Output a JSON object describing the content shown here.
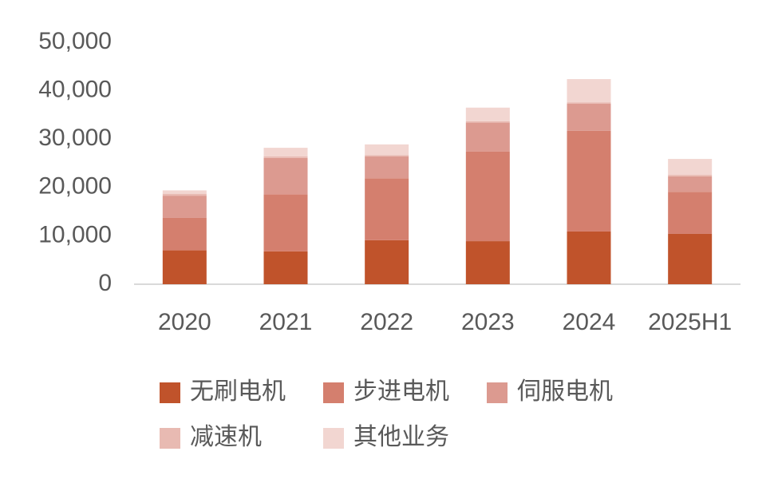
{
  "chart_data": {
    "type": "stacked_bar",
    "categories": [
      "2020",
      "2021",
      "2022",
      "2023",
      "2024",
      "2025H1"
    ],
    "series": [
      {
        "name": "无刷电机",
        "color": "#c0532b",
        "values": [
          7000,
          6800,
          9100,
          8900,
          10900,
          10400
        ]
      },
      {
        "name": "步进电机",
        "color": "#d47f6e",
        "values": [
          6700,
          11800,
          12800,
          18500,
          20800,
          8700
        ]
      },
      {
        "name": "伺服电机",
        "color": "#dc9a90",
        "values": [
          4600,
          7500,
          4500,
          6000,
          5600,
          3200
        ]
      },
      {
        "name": "减速机",
        "color": "#e8bab2",
        "values": [
          400,
          300,
          300,
          300,
          300,
          300
        ]
      },
      {
        "name": "其他业务",
        "color": "#f2d6d1",
        "values": [
          700,
          1800,
          2200,
          2800,
          4800,
          3300
        ]
      }
    ],
    "ylim": [
      0,
      50000
    ],
    "yticks": [
      0,
      {
        "value": 10000,
        "label": "10,000"
      },
      {
        "value": 20000,
        "label": "20,000"
      },
      {
        "value": 30000,
        "label": "30,000"
      },
      {
        "value": 40000,
        "label": "40,000"
      },
      {
        "value": 50000,
        "label": "50,000"
      }
    ],
    "grid": false
  }
}
